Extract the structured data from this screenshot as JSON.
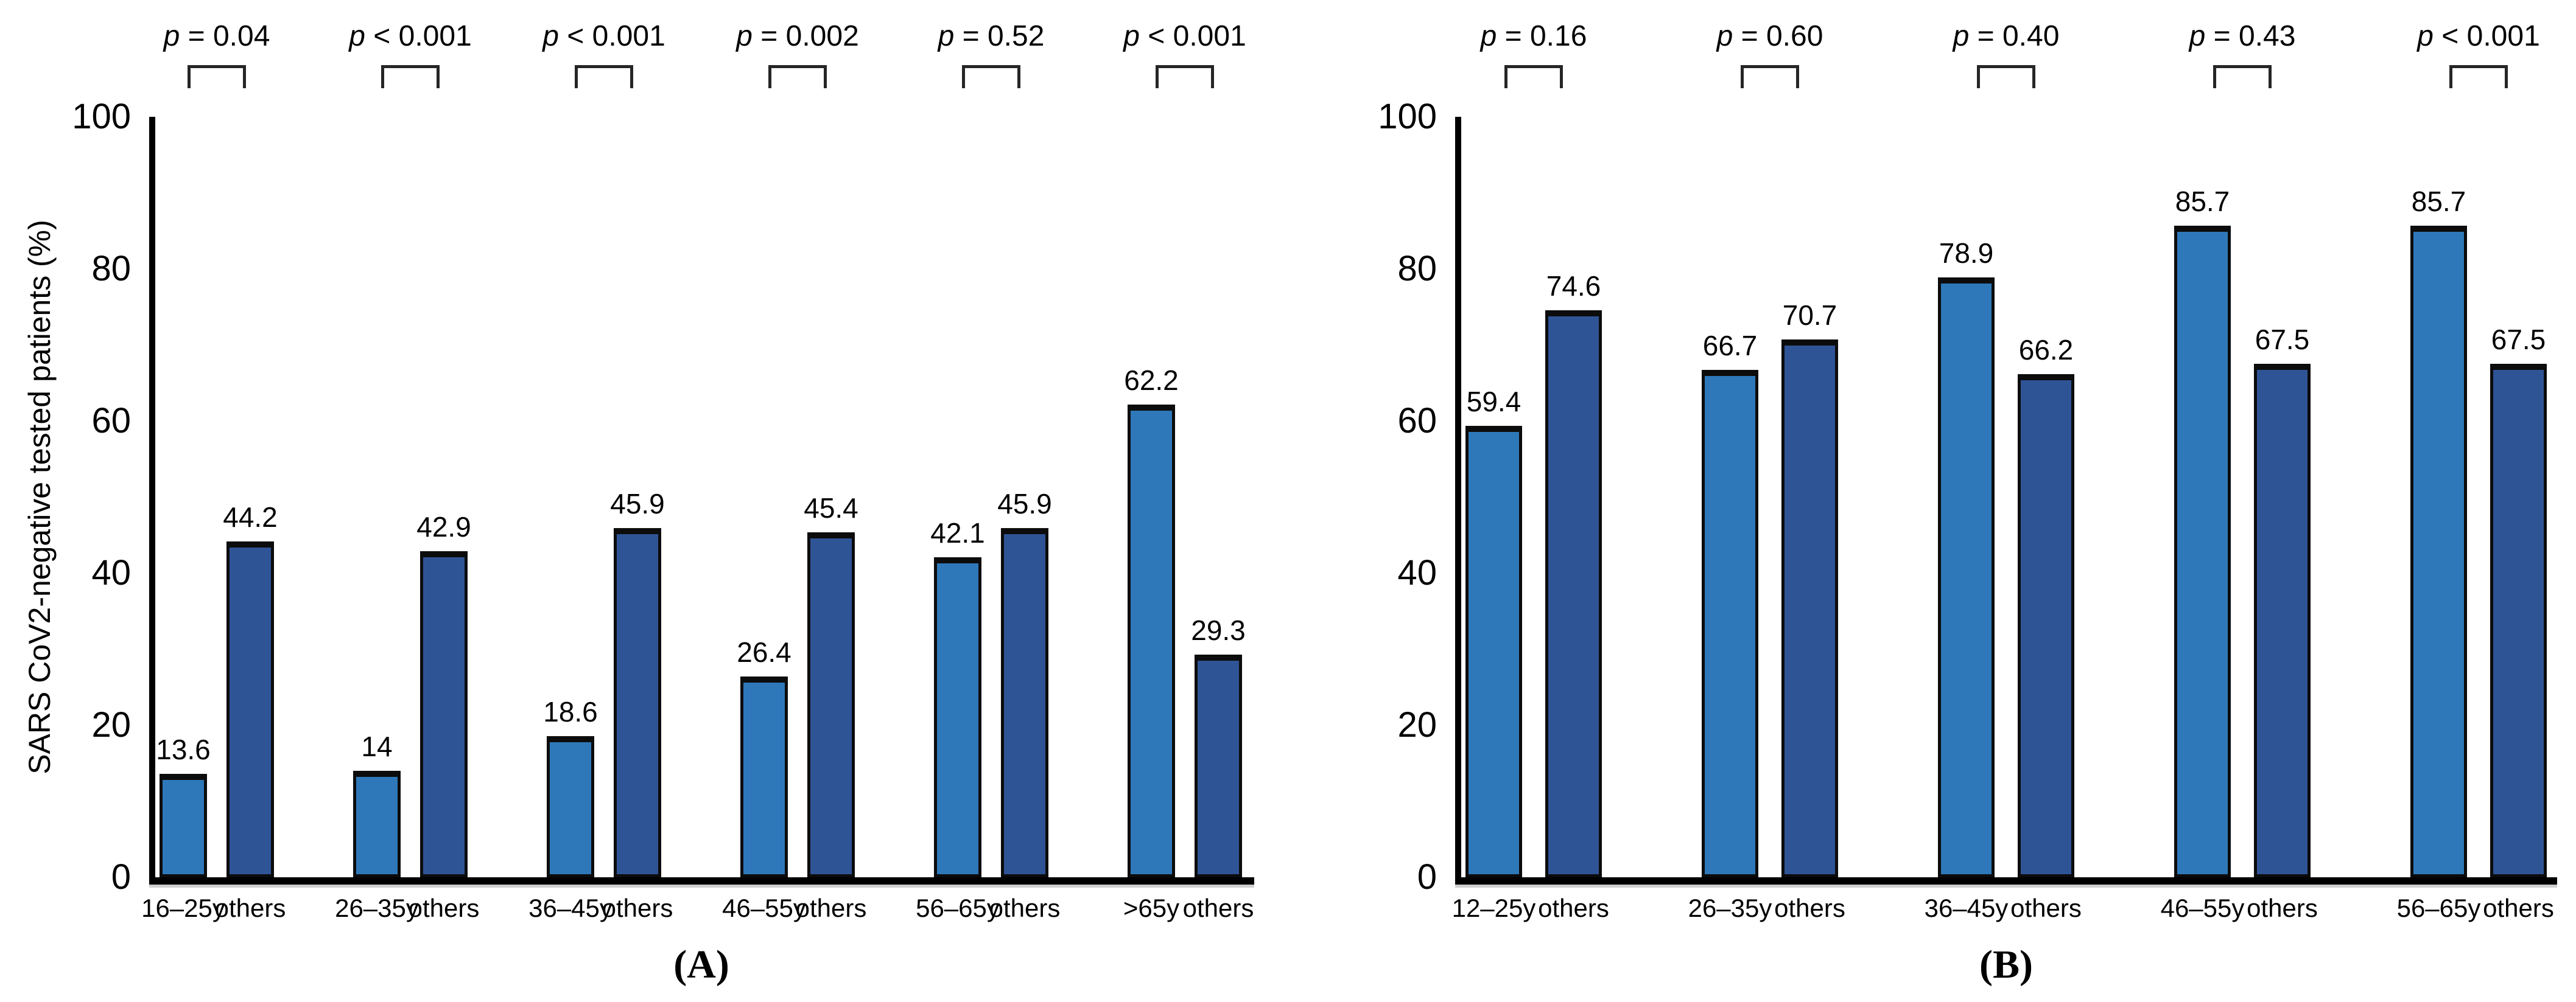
{
  "figure": {
    "y_axis_label": "SARS CoV2-negative tested patients (%)",
    "colors": {
      "light_bar": "#2E78B9",
      "dark_bar": "#2F5496",
      "bar_border": "#0c0c0c",
      "axis": "#000000",
      "bracket": "#262626"
    }
  },
  "chart_data": [
    {
      "panel": "A",
      "type": "bar",
      "caption": "(A)",
      "ylabel": "SARS CoV2-negative tested patients (%)",
      "ylim": [
        0,
        100
      ],
      "yticks": [
        0,
        20,
        40,
        60,
        80,
        100
      ],
      "legend": "none",
      "grid": "off",
      "groups": [
        {
          "p_symbol": "p",
          "p_rest": " = 0.04",
          "bars": [
            {
              "x": "16–25y",
              "value": 13.6,
              "label": "13.6",
              "color": "light"
            },
            {
              "x": "others",
              "value": 44.2,
              "label": "44.2",
              "color": "dark"
            }
          ]
        },
        {
          "p_symbol": "p",
          "p_rest": " < 0.001",
          "bars": [
            {
              "x": "26–35y",
              "value": 14,
              "label": "14",
              "color": "light"
            },
            {
              "x": "others",
              "value": 42.9,
              "label": "42.9",
              "color": "dark"
            }
          ]
        },
        {
          "p_symbol": "p",
          "p_rest": " < 0.001",
          "bars": [
            {
              "x": "36–45y",
              "value": 18.6,
              "label": "18.6",
              "color": "light"
            },
            {
              "x": "others",
              "value": 45.9,
              "label": "45.9",
              "color": "dark"
            }
          ]
        },
        {
          "p_symbol": "p",
          "p_rest": " = 0.002",
          "bars": [
            {
              "x": "46–55y",
              "value": 26.4,
              "label": "26.4",
              "color": "light"
            },
            {
              "x": "others",
              "value": 45.4,
              "label": "45.4",
              "color": "dark"
            }
          ]
        },
        {
          "p_symbol": "p",
          "p_rest": " = 0.52",
          "bars": [
            {
              "x": "56–65y",
              "value": 42.1,
              "label": "42.1",
              "color": "light"
            },
            {
              "x": "others",
              "value": 45.9,
              "label": "45.9",
              "color": "dark"
            }
          ]
        },
        {
          "p_symbol": "p",
          "p_rest": " < 0.001",
          "bars": [
            {
              "x": ">65y",
              "value": 62.2,
              "label": "62.2",
              "color": "light"
            },
            {
              "x": "others",
              "value": 29.3,
              "label": "29.3",
              "color": "dark"
            }
          ]
        }
      ]
    },
    {
      "panel": "B",
      "type": "bar",
      "caption": "(B)",
      "ylabel": "",
      "ylim": [
        0,
        100
      ],
      "yticks": [
        0,
        20,
        40,
        60,
        80,
        100
      ],
      "legend": "none",
      "grid": "off",
      "groups": [
        {
          "p_symbol": "p",
          "p_rest": " = 0.16",
          "bars": [
            {
              "x": "12–25y",
              "value": 59.4,
              "label": "59.4",
              "color": "light"
            },
            {
              "x": "others",
              "value": 74.6,
              "label": "74.6",
              "color": "dark"
            }
          ]
        },
        {
          "p_symbol": "p",
          "p_rest": " = 0.60",
          "bars": [
            {
              "x": "26–35y",
              "value": 66.7,
              "label": "66.7",
              "color": "light"
            },
            {
              "x": "others",
              "value": 70.7,
              "label": "70.7",
              "color": "dark"
            }
          ]
        },
        {
          "p_symbol": "p",
          "p_rest": " = 0.40",
          "bars": [
            {
              "x": "36–45y",
              "value": 78.9,
              "label": "78.9",
              "color": "light"
            },
            {
              "x": "others",
              "value": 66.2,
              "label": "66.2",
              "color": "dark"
            }
          ]
        },
        {
          "p_symbol": "p",
          "p_rest": " = 0.43",
          "bars": [
            {
              "x": "46–55y",
              "value": 85.7,
              "label": "85.7",
              "color": "light"
            },
            {
              "x": "others",
              "value": 67.5,
              "label": "67.5",
              "color": "dark"
            }
          ]
        },
        {
          "p_symbol": "p",
          "p_rest": " < 0.001",
          "bars": [
            {
              "x": "56–65y",
              "value": 85.7,
              "label": "85.7",
              "color": "light"
            },
            {
              "x": "others",
              "value": 67.5,
              "label": "67.5",
              "color": "dark"
            }
          ]
        }
      ]
    }
  ]
}
